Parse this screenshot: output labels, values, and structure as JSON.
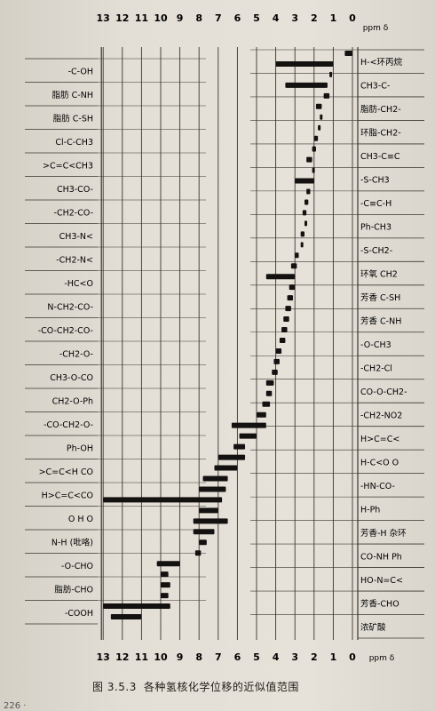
{
  "figure": {
    "number": "图 3.5.3",
    "title": "各种氢核化学位移的近似值范围"
  },
  "page": {
    "number": "226 ·"
  },
  "chart_data": {
    "type": "bar",
    "orientation": "horizontal-range",
    "x_axis": {
      "label": "ppm δ",
      "top_ticks": [
        "13",
        "12",
        "11",
        "10",
        "9",
        "8",
        "7",
        "6",
        "5",
        "4",
        "3",
        "2",
        "1",
        "0"
      ],
      "bottom_ticks": [
        "13",
        "12",
        "11",
        "10",
        "9",
        "8",
        "7",
        "6",
        "5",
        "4",
        "3",
        "2",
        "1",
        "0"
      ],
      "range": [
        13,
        0
      ],
      "reversed": true
    },
    "grid": true,
    "left_labels": [
      "-C-OH",
      "脂肪 C-NH",
      "脂肪 C-SH",
      "Cl-C-CH3",
      ">C=C<CH3",
      "CH3-CO-",
      "-CH2-CO-",
      "CH3-N<",
      "-CH2-N<",
      "-HC<O",
      "N-CH2-CO-",
      "-CO-CH2-CO-",
      "-CH2-O-",
      "CH3-O-CO",
      "CH2-O-Ph",
      "-CO-CH2-O-",
      "Ph-OH",
      ">C=C<H CO",
      "H>C=C<CO",
      "O H O",
      "N-H (吡咯)",
      "-O-CHO",
      "脂肪-CHO",
      "-COOH"
    ],
    "right_labels": [
      "H-<环丙烷",
      "CH3-C-",
      "脂肪-CH2-",
      "环脂-CH2-",
      "CH3-C≡C",
      "-S-CH3",
      "-C≡C-H",
      "Ph-CH3",
      "-S-CH2-",
      "环氧 CH2",
      "芳香 C-SH",
      "芳香 C-NH",
      "-O-CH3",
      "-CH2-Cl",
      "CO-O-CH2-",
      "-CH2-NO2",
      "H>C=C<",
      "H-C<O O",
      "-HN-CO-",
      "H-Ph",
      "芳香-H 杂环",
      "CO-NH Ph",
      "HO-N=C<",
      "芳香-CHO",
      "浓矿酸"
    ],
    "series": [
      {
        "values": [
          [
            0.4,
            0.0
          ]
        ]
      },
      {
        "values": [
          [
            4.0,
            1.0
          ]
        ]
      },
      {
        "values": [
          [
            1.2,
            1.1
          ]
        ]
      },
      {
        "values": [
          [
            3.5,
            1.3
          ]
        ]
      },
      {
        "values": [
          [
            1.5,
            1.2
          ]
        ]
      },
      {
        "values": [
          [
            1.9,
            1.6
          ]
        ]
      },
      {
        "values": [
          [
            1.7,
            1.6
          ]
        ]
      },
      {
        "values": [
          [
            1.8,
            1.7
          ]
        ]
      },
      {
        "values": [
          [
            2.0,
            1.8
          ]
        ]
      },
      {
        "values": [
          [
            2.1,
            1.9
          ]
        ]
      },
      {
        "values": [
          [
            2.4,
            2.1
          ]
        ]
      },
      {
        "values": [
          [
            2.1,
            2.0
          ]
        ]
      },
      {
        "values": [
          [
            3.0,
            2.0
          ]
        ]
      },
      {
        "values": [
          [
            2.4,
            2.2
          ]
        ]
      },
      {
        "values": [
          [
            2.5,
            2.3
          ]
        ]
      },
      {
        "values": [
          [
            2.6,
            2.4
          ]
        ]
      },
      {
        "values": [
          [
            2.5,
            2.4
          ]
        ]
      },
      {
        "values": [
          [
            2.7,
            2.5
          ]
        ]
      },
      {
        "values": [
          [
            2.7,
            2.6
          ]
        ]
      },
      {
        "values": [
          [
            3.0,
            2.8
          ]
        ]
      },
      {
        "values": [
          [
            3.2,
            2.9
          ]
        ]
      },
      {
        "values": [
          [
            4.5,
            3.0
          ]
        ]
      },
      {
        "values": [
          [
            3.3,
            3.0
          ]
        ]
      },
      {
        "values": [
          [
            3.4,
            3.1
          ]
        ]
      },
      {
        "values": [
          [
            3.5,
            3.2
          ]
        ]
      },
      {
        "values": [
          [
            3.6,
            3.3
          ]
        ]
      },
      {
        "values": [
          [
            3.7,
            3.4
          ]
        ]
      },
      {
        "values": [
          [
            3.8,
            3.5
          ]
        ]
      },
      {
        "values": [
          [
            4.0,
            3.7
          ]
        ]
      },
      {
        "values": [
          [
            4.1,
            3.8
          ]
        ]
      },
      {
        "values": [
          [
            4.2,
            3.9
          ]
        ]
      },
      {
        "values": [
          [
            4.5,
            4.1
          ]
        ]
      },
      {
        "values": [
          [
            4.5,
            4.2
          ]
        ]
      },
      {
        "values": [
          [
            4.7,
            4.3
          ]
        ]
      },
      {
        "values": [
          [
            5.0,
            4.5
          ]
        ]
      },
      {
        "values": [
          [
            6.3,
            4.5
          ]
        ]
      },
      {
        "values": [
          [
            5.9,
            5.0
          ]
        ]
      },
      {
        "values": [
          [
            6.2,
            5.6
          ]
        ]
      },
      {
        "values": [
          [
            7.0,
            5.6
          ]
        ]
      },
      {
        "values": [
          [
            7.2,
            6.0
          ]
        ]
      },
      {
        "values": [
          [
            7.8,
            6.5
          ]
        ]
      },
      {
        "values": [
          [
            8.0,
            6.6
          ]
        ]
      },
      {
        "values": [
          [
            13.0,
            6.8
          ]
        ]
      },
      {
        "values": [
          [
            8.0,
            7.0
          ]
        ]
      },
      {
        "values": [
          [
            8.3,
            6.5
          ]
        ]
      },
      {
        "values": [
          [
            8.3,
            7.2
          ]
        ]
      },
      {
        "values": [
          [
            8.0,
            7.6
          ]
        ]
      },
      {
        "values": [
          [
            8.2,
            7.9
          ]
        ]
      },
      {
        "values": [
          [
            10.2,
            9.0
          ]
        ]
      },
      {
        "values": [
          [
            10.0,
            9.6
          ]
        ]
      },
      {
        "values": [
          [
            10.0,
            9.5
          ]
        ]
      },
      {
        "values": [
          [
            10.0,
            9.6
          ]
        ]
      },
      {
        "values": [
          [
            13.0,
            9.5
          ]
        ]
      },
      {
        "values": [
          [
            12.6,
            11.0
          ]
        ]
      }
    ]
  }
}
